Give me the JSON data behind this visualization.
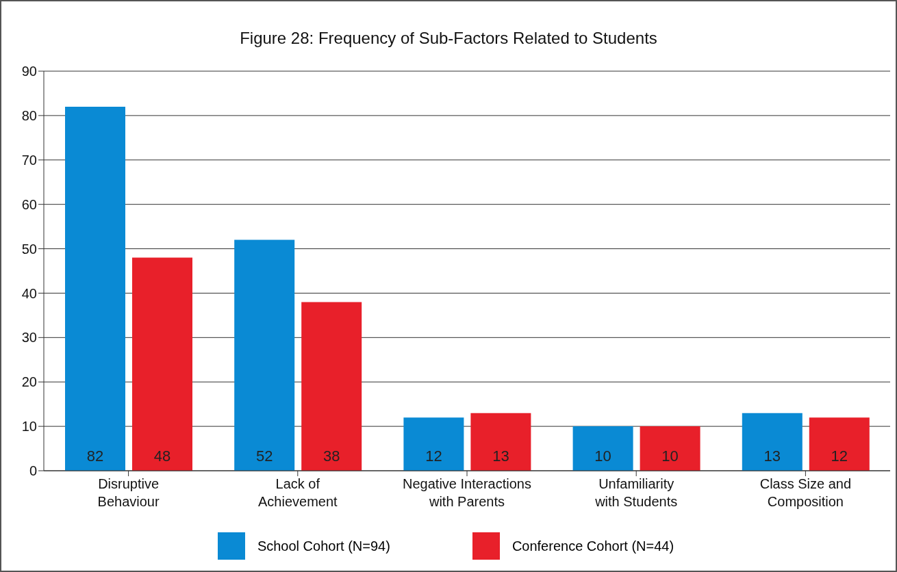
{
  "chart_data": {
    "type": "bar",
    "title": "Figure 28: Frequency of Sub-Factors Related to Students",
    "categories": [
      "Disruptive Behaviour",
      "Lack of Achievement",
      "Negative Interactions with Parents",
      "Unfamiliarity with Students",
      "Class Size and Composition"
    ],
    "series": [
      {
        "name": "School Cohort (N=94)",
        "color": "#0a8ad4",
        "values": [
          82,
          52,
          12,
          10,
          13
        ]
      },
      {
        "name": "Conference Cohort (N=44)",
        "color": "#e8202a",
        "values": [
          48,
          38,
          13,
          10,
          12
        ]
      }
    ],
    "ylim": [
      0,
      90
    ],
    "yticks": [
      0,
      10,
      20,
      30,
      40,
      50,
      60,
      70,
      80,
      90
    ],
    "grid": "y",
    "legend": "bottom",
    "data_labels": true
  }
}
